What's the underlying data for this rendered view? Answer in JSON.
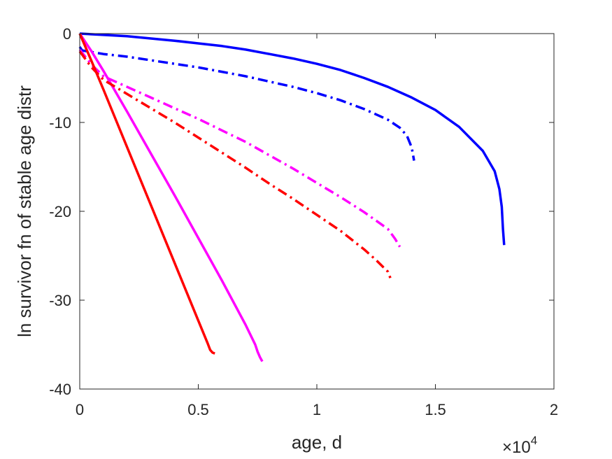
{
  "chart_data": {
    "type": "line",
    "xlabel": "age, d",
    "ylabel": "ln survivor fn of stable age distr",
    "x_multiplier_base": "×10",
    "x_multiplier_exp": "4",
    "xlim": [
      0,
      2
    ],
    "ylim": [
      -40,
      0
    ],
    "xticks": [
      0,
      0.5,
      1,
      1.5,
      2
    ],
    "xtick_labels": [
      "0",
      "0.5",
      "1",
      "1.5",
      "2"
    ],
    "yticks": [
      0,
      -10,
      -20,
      -30,
      -40
    ],
    "ytick_labels": [
      "0",
      "-10",
      "-20",
      "-30",
      "-40"
    ],
    "grid": false,
    "series": [
      {
        "color": "#0000ff",
        "style": "solid",
        "x": [
          0,
          0.1,
          0.2,
          0.3,
          0.4,
          0.5,
          0.6,
          0.7,
          0.8,
          0.9,
          1.0,
          1.1,
          1.2,
          1.3,
          1.4,
          1.5,
          1.6,
          1.7,
          1.75,
          1.77,
          1.78,
          1.785,
          1.79
        ],
        "y": [
          0,
          -0.15,
          -0.3,
          -0.55,
          -0.8,
          -1.1,
          -1.4,
          -1.8,
          -2.3,
          -2.8,
          -3.4,
          -4.1,
          -5.0,
          -6.0,
          -7.2,
          -8.6,
          -10.5,
          -13.2,
          -15.5,
          -17.5,
          -19.5,
          -22.0,
          -23.8
        ]
      },
      {
        "color": "#0000ff",
        "style": "dashdot",
        "x": [
          0,
          0.01,
          0.1,
          0.2,
          0.3,
          0.4,
          0.5,
          0.6,
          0.7,
          0.8,
          0.9,
          1.0,
          1.1,
          1.2,
          1.3,
          1.35,
          1.38,
          1.4,
          1.41
        ],
        "y": [
          -1.5,
          -1.9,
          -2.3,
          -2.6,
          -3.0,
          -3.4,
          -3.8,
          -4.3,
          -4.8,
          -5.4,
          -6.0,
          -6.7,
          -7.5,
          -8.5,
          -9.7,
          -10.6,
          -11.5,
          -12.8,
          -14.3
        ]
      },
      {
        "color": "#ff00ff",
        "style": "solid",
        "x": [
          0,
          0.05,
          0.1,
          0.2,
          0.3,
          0.4,
          0.5,
          0.6,
          0.7,
          0.74,
          0.75,
          0.76,
          0.77
        ],
        "y": [
          0,
          -2.0,
          -4.2,
          -8.8,
          -13.5,
          -18.2,
          -23.0,
          -27.8,
          -32.8,
          -35.0,
          -35.8,
          -36.4,
          -36.9
        ]
      },
      {
        "color": "#ff00ff",
        "style": "dashdot",
        "x": [
          0,
          0.05,
          0.1,
          0.2,
          0.3,
          0.4,
          0.5,
          0.6,
          0.7,
          0.8,
          0.9,
          1.0,
          1.1,
          1.2,
          1.3,
          1.33,
          1.35
        ],
        "y": [
          -1.8,
          -3.5,
          -4.8,
          -6.0,
          -7.2,
          -8.4,
          -9.6,
          -10.9,
          -12.2,
          -13.7,
          -15.2,
          -16.8,
          -18.4,
          -20.1,
          -22.0,
          -23.1,
          -24.0
        ]
      },
      {
        "color": "#ff0000",
        "style": "solid",
        "x": [
          0,
          0.05,
          0.1,
          0.2,
          0.3,
          0.4,
          0.5,
          0.54,
          0.55,
          0.56,
          0.57
        ],
        "y": [
          0,
          -3.1,
          -6.3,
          -12.8,
          -19.3,
          -25.8,
          -32.3,
          -34.9,
          -35.6,
          -35.9,
          -36.0
        ]
      },
      {
        "color": "#ff0000",
        "style": "dashdot",
        "x": [
          0,
          0.05,
          0.1,
          0.2,
          0.3,
          0.4,
          0.5,
          0.6,
          0.7,
          0.8,
          0.9,
          1.0,
          1.1,
          1.2,
          1.25,
          1.3,
          1.31
        ],
        "y": [
          -2.0,
          -3.8,
          -5.2,
          -6.8,
          -8.4,
          -10.0,
          -11.7,
          -13.4,
          -15.1,
          -16.9,
          -18.6,
          -20.4,
          -22.2,
          -24.3,
          -25.5,
          -26.8,
          -27.5
        ]
      }
    ]
  }
}
